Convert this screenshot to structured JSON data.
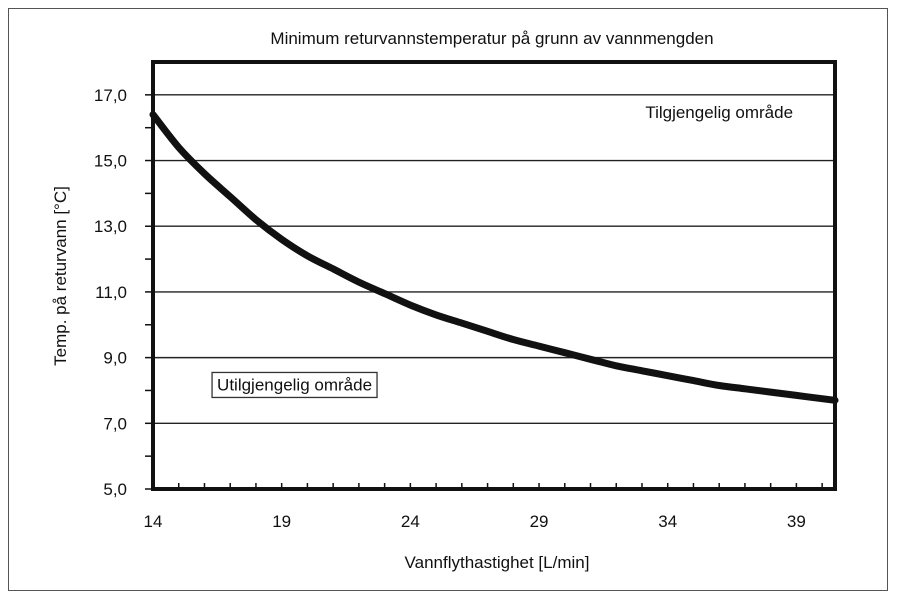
{
  "chart_data": {
    "type": "line",
    "title": "Minimum returvannstemperatur på grunn av vannmengden",
    "xlabel": "Vannflythastighet [L/min]",
    "ylabel": "Temp. på returvann [°C]",
    "xlim": [
      14,
      40.5
    ],
    "ylim": [
      5,
      18
    ],
    "x_ticks": [
      14,
      19,
      24,
      29,
      34,
      39
    ],
    "x_tick_labels": [
      "14",
      "19",
      "24",
      "29",
      "34",
      "39"
    ],
    "y_ticks": [
      5,
      7,
      9,
      11,
      13,
      15,
      17
    ],
    "y_tick_labels": [
      "5,0",
      "7,0",
      "9,0",
      "11,0",
      "13,0",
      "15,0",
      "17,0"
    ],
    "grid": "horizontal",
    "series": [
      {
        "x": [
          14,
          15,
          16,
          17,
          18,
          19,
          20,
          21,
          22,
          23,
          24,
          25,
          26,
          27,
          28,
          29,
          30,
          31,
          32,
          33,
          34,
          35,
          36,
          37,
          38,
          39,
          40,
          40.5
        ],
        "y": [
          16.4,
          15.4,
          14.6,
          13.9,
          13.2,
          12.6,
          12.1,
          11.7,
          11.3,
          10.95,
          10.6,
          10.3,
          10.05,
          9.8,
          9.55,
          9.35,
          9.15,
          8.95,
          8.75,
          8.6,
          8.45,
          8.3,
          8.15,
          8.05,
          7.95,
          7.85,
          7.75,
          7.7
        ]
      }
    ],
    "annotations": [
      {
        "text": "Tilgjengelig område",
        "x": 36.0,
        "y": 16.3
      },
      {
        "text": "Utilgjengelig område",
        "x": 19.5,
        "y": 8.0,
        "boxed": true
      }
    ]
  }
}
